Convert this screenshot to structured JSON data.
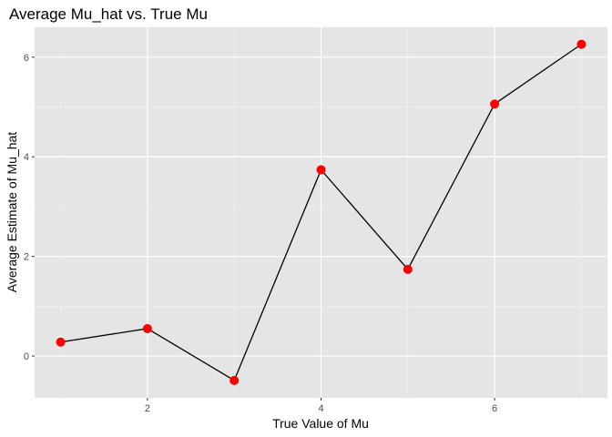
{
  "chart_data": {
    "type": "line",
    "title": "Average Mu_hat vs. True Mu",
    "xlabel": "True Value of Mu",
    "ylabel": "Average Estimate of Mu_hat",
    "x": [
      1,
      2,
      3,
      4,
      5,
      6,
      7
    ],
    "series": [
      {
        "values": [
          0.28,
          0.55,
          -0.49,
          3.74,
          1.74,
          5.06,
          6.26
        ]
      }
    ],
    "xlim": [
      0.7,
      7.3
    ],
    "ylim": [
      -0.84,
      6.6
    ],
    "xticks": [
      2,
      4,
      6
    ],
    "yticks": [
      0,
      2,
      4,
      6
    ],
    "xtick_labels": [
      "2",
      "4",
      "6"
    ],
    "ytick_labels": [
      "0",
      "2",
      "4",
      "6"
    ],
    "grid": true,
    "legend": "none",
    "colors": {
      "panel_background": "#e5e5e5",
      "grid_major": "#ffffff",
      "grid_minor": "#f2f2f2",
      "line": "#000000",
      "points": "#ff0000",
      "tick_text": "#4d4d4d"
    }
  }
}
